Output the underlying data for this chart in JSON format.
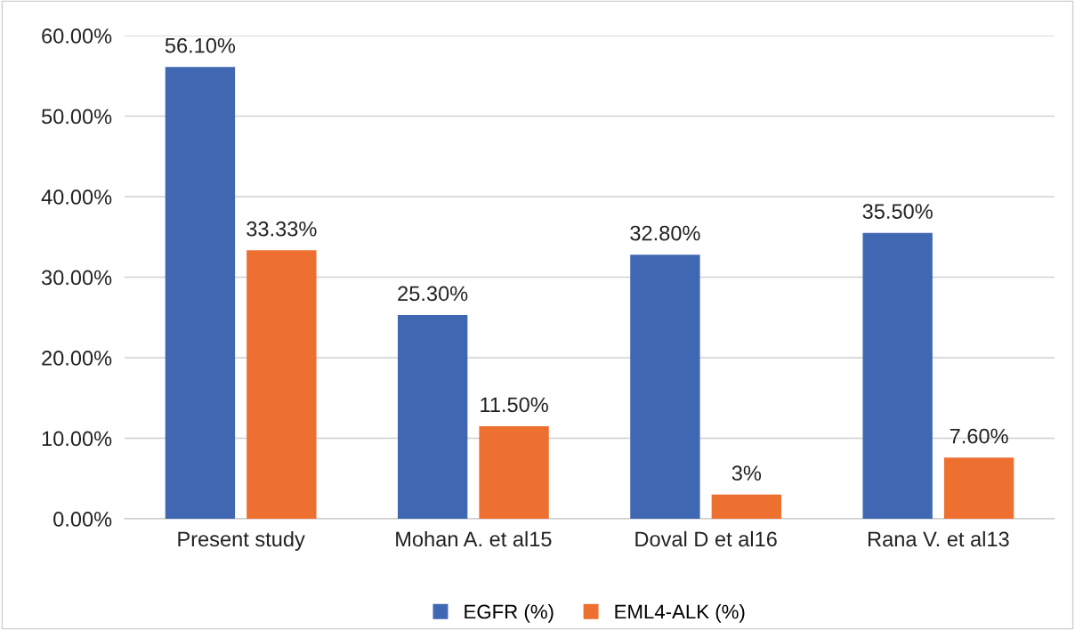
{
  "chart_data": {
    "type": "bar",
    "categories": [
      "Present study",
      "Mohan A. et al15",
      "Doval D et al16",
      "Rana V. et al13"
    ],
    "series": [
      {
        "name": "EGFR (%)",
        "color": "#4068b2",
        "values": [
          56.1,
          25.3,
          32.8,
          35.5
        ],
        "value_labels": [
          "56.10%",
          "25.30%",
          "32.80%",
          "35.50%"
        ]
      },
      {
        "name": "EML4-ALK (%)",
        "color": "#ed7031",
        "values": [
          33.33,
          11.5,
          3,
          7.6
        ],
        "value_labels": [
          "33.33%",
          "11.50%",
          "3%",
          "7.60%"
        ]
      }
    ],
    "ylim": [
      0,
      60
    ],
    "yticks": [
      {
        "value": 0,
        "label": "0.00%"
      },
      {
        "value": 10,
        "label": "10.00%"
      },
      {
        "value": 20,
        "label": "20.00%"
      },
      {
        "value": 30,
        "label": "30.00%"
      },
      {
        "value": 40,
        "label": "40.00%"
      },
      {
        "value": 50,
        "label": "50.00%"
      },
      {
        "value": 60,
        "label": "60.00%"
      }
    ],
    "grid": "y",
    "legend": "bottom"
  }
}
